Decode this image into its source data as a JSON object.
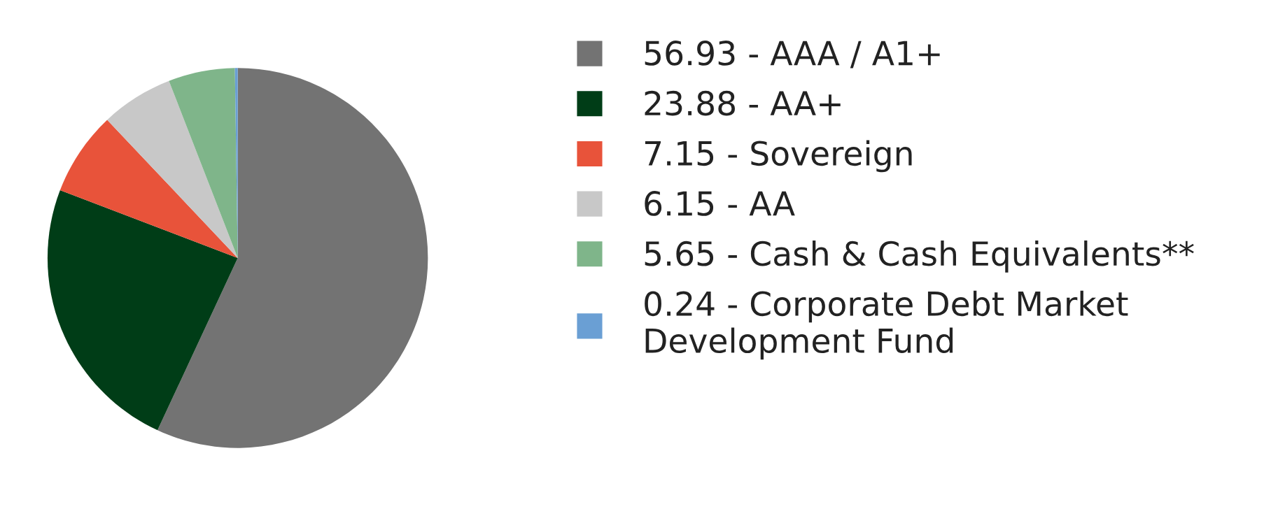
{
  "chart_data": {
    "type": "pie",
    "categories": [
      "AAA / A1+",
      "AA+",
      "Sovereign",
      "AA",
      "Cash & Cash Equivalents**",
      "Corporate Debt Market\nDevelopment Fund"
    ],
    "values": [
      56.93,
      23.88,
      7.15,
      6.15,
      5.65,
      0.24
    ],
    "value_labels": [
      "56.93",
      "23.88",
      "7.15",
      "6.15",
      "5.65",
      "0.24"
    ],
    "colors": [
      "#737373",
      "#003d17",
      "#e8533a",
      "#c8c8c8",
      "#7fb58a",
      "#6a9fd4"
    ],
    "legend": "right"
  }
}
